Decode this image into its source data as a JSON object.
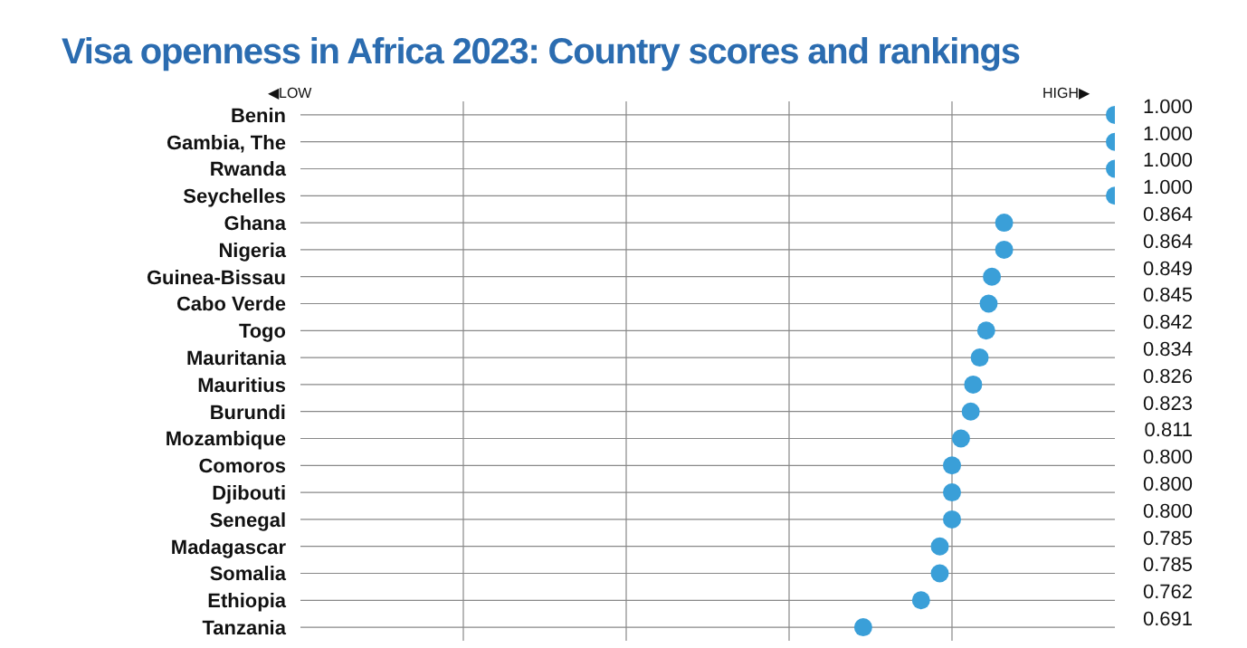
{
  "chart_data": {
    "type": "scatter",
    "title": "Visa openness in Africa 2023: Country scores and rankings",
    "categories": [
      "Benin",
      "Gambia, The",
      "Rwanda",
      "Seychelles",
      "Ghana",
      "Nigeria",
      "Guinea-Bissau",
      "Cabo Verde",
      "Togo",
      "Mauritania",
      "Mauritius",
      "Burundi",
      "Mozambique",
      "Comoros",
      "Djibouti",
      "Senegal",
      "Madagascar",
      "Somalia",
      "Ethiopia",
      "Tanzania"
    ],
    "values": [
      1.0,
      1.0,
      1.0,
      1.0,
      0.864,
      0.864,
      0.849,
      0.845,
      0.842,
      0.834,
      0.826,
      0.823,
      0.811,
      0.8,
      0.8,
      0.8,
      0.785,
      0.785,
      0.762,
      0.691
    ],
    "value_labels": [
      "1.000",
      "1.000",
      "1.000",
      "1.000",
      "0.864",
      "0.864",
      "0.849",
      "0.845",
      "0.842",
      "0.834",
      "0.826",
      "0.823",
      "0.811",
      "0.800",
      "0.800",
      "0.800",
      "0.785",
      "0.785",
      "0.762",
      "0.691"
    ],
    "color": "#3a9fd8",
    "marker": "circle",
    "orientation": "horizontal",
    "xlim": [
      0,
      1
    ],
    "xticks": [
      {
        "value": 0.2,
        "label": null
      },
      {
        "value": 0.4,
        "label": null
      },
      {
        "value": 0.6,
        "label": null
      },
      {
        "value": 0.8,
        "label": null
      }
    ],
    "tick_labels": "y",
    "grid": true,
    "annotations": [
      "◀LOW",
      "HIGH▶"
    ]
  }
}
